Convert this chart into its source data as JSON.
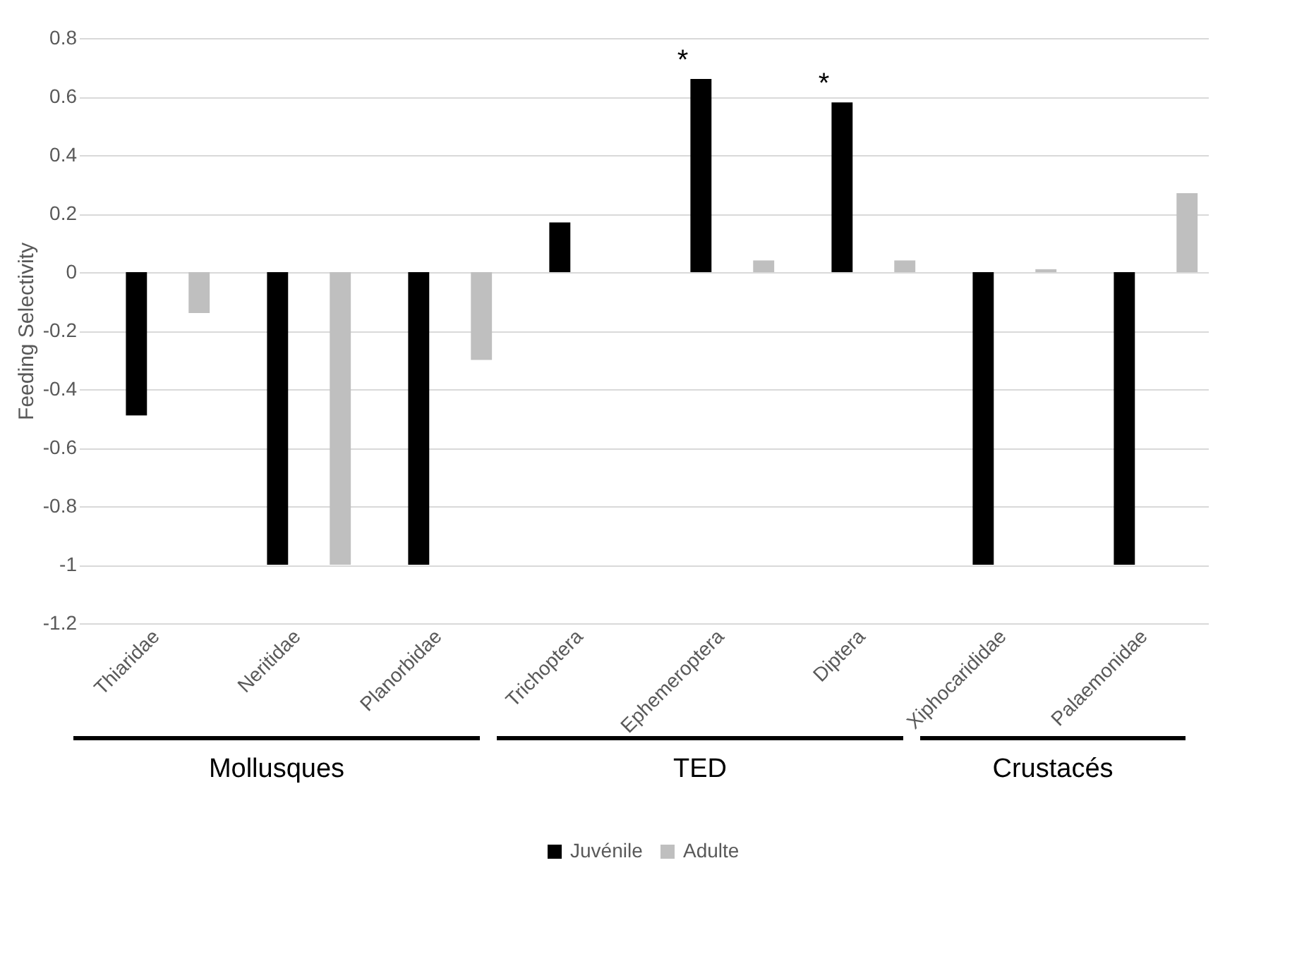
{
  "chart_data": {
    "type": "bar",
    "ylabel": "Feeding Selectivity",
    "categories": [
      "Thiaridae",
      "Neritidae",
      "Planorbidae",
      "Trichoptera",
      "Ephemeroptera",
      "Diptera",
      "Xiphocarididae",
      "Palaemonidae"
    ],
    "series": [
      {
        "name": "Juvénile",
        "color": "#000000",
        "values": [
          -0.49,
          -1,
          -1,
          0.17,
          0.66,
          0.58,
          -1,
          -1
        ],
        "value_labels": [
          null,
          null,
          null,
          null,
          "*",
          "*",
          null,
          null
        ]
      },
      {
        "name": "Adulte",
        "color": "#bfbfbf",
        "values": [
          -0.14,
          -1,
          -0.3,
          0,
          0.04,
          0.04,
          0.01,
          0.27
        ]
      }
    ],
    "ylim": [
      -1.2,
      0.8
    ],
    "yticks": [
      -1.2,
      -1,
      -0.8,
      -0.6,
      -0.4,
      -0.2,
      0,
      0.2,
      0.4,
      0.6,
      0.8
    ],
    "grid": "y",
    "legend": "bottom",
    "annotations": [
      "Mollusques",
      "TED",
      "Crustacés"
    ]
  }
}
